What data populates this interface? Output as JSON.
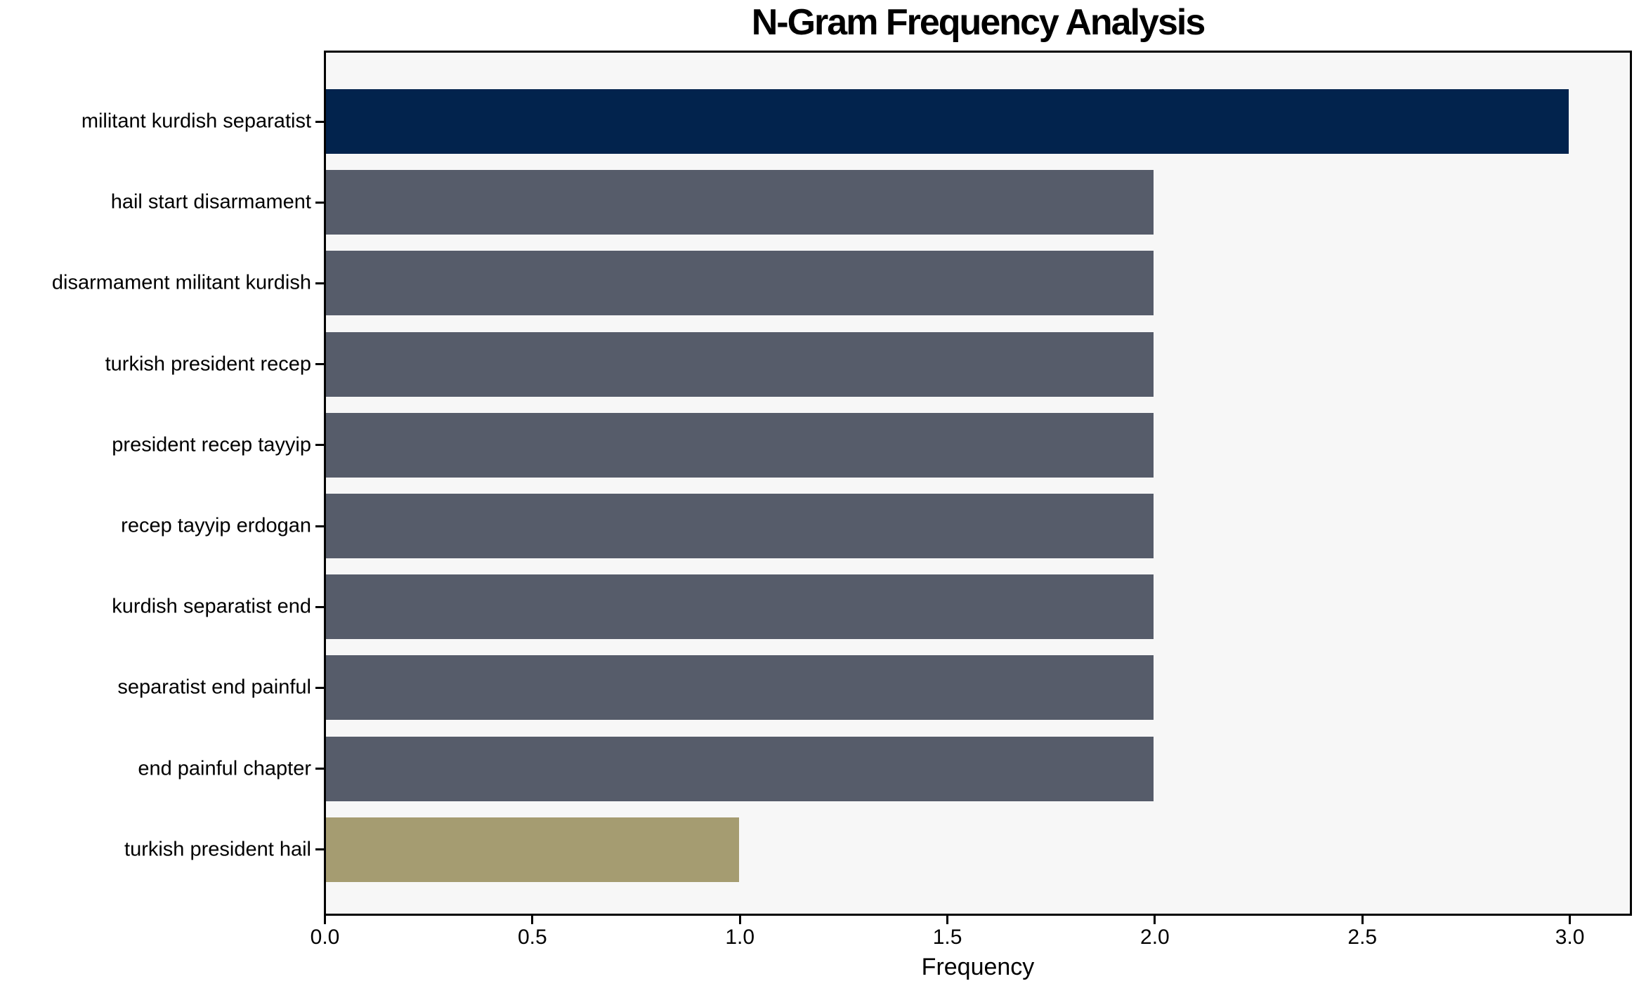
{
  "chart_data": {
    "type": "bar",
    "orientation": "horizontal",
    "title": "N-Gram Frequency Analysis",
    "xlabel": "Frequency",
    "ylabel": "",
    "categories": [
      "militant kurdish separatist",
      "hail start disarmament",
      "disarmament militant kurdish",
      "turkish president recep",
      "president recep tayyip",
      "recep tayyip erdogan",
      "kurdish separatist end",
      "separatist end painful",
      "end painful chapter",
      "turkish president hail"
    ],
    "values": [
      3,
      2,
      2,
      2,
      2,
      2,
      2,
      2,
      2,
      1
    ],
    "bar_colors": [
      "#02234d",
      "#565c6a",
      "#565c6a",
      "#565c6a",
      "#565c6a",
      "#565c6a",
      "#565c6a",
      "#565c6a",
      "#565c6a",
      "#a59c71"
    ],
    "xlim": [
      0,
      3.15
    ],
    "xticks": [
      "0.0",
      "0.5",
      "1.0",
      "1.5",
      "2.0",
      "2.5",
      "3.0"
    ],
    "xtick_values": [
      0,
      0.5,
      1,
      1.5,
      2,
      2.5,
      3
    ],
    "grid": false,
    "legend_position": "none",
    "plot_background": "#f7f7f7",
    "figure_background": "#ffffff",
    "axis_color": "#000000",
    "text_color": "#000000"
  }
}
